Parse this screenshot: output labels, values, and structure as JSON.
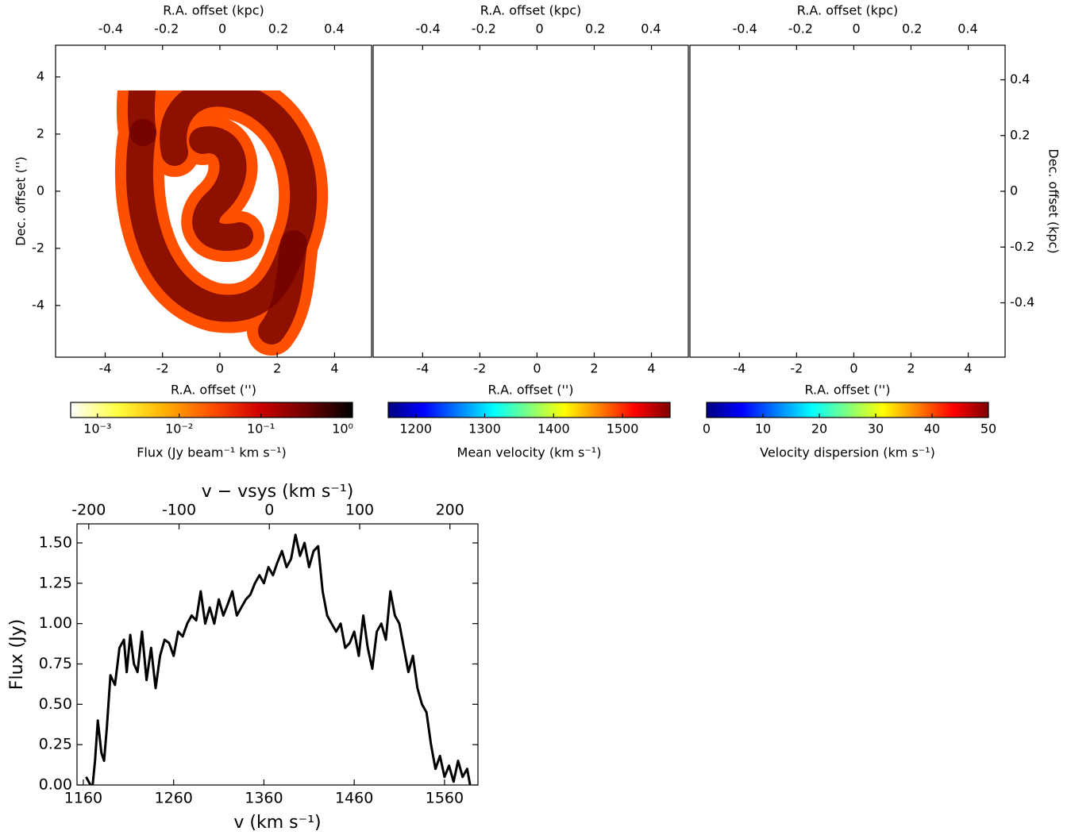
{
  "chart_data": [
    {
      "type": "image",
      "x_label": "R.A. offset ('')",
      "y_label": "Dec. offset ('')",
      "top_label": "R.A. offset (kpc)",
      "xlim": [
        -5.73,
        5.29
      ],
      "xticks": [
        -4,
        -2,
        0,
        2,
        4
      ],
      "ylim": [
        -5.81,
        5.11
      ],
      "yticks": [
        -4,
        -2,
        0,
        2,
        4
      ],
      "top_xlim": [
        -0.597,
        0.534
      ],
      "top_xticks": [
        -0.4,
        -0.2,
        0,
        0.2,
        0.4
      ],
      "colorbar": {
        "label": "Flux (Jy beam⁻¹ km s⁻¹)",
        "log": true,
        "lim": [
          0.00047,
          1.32
        ],
        "ticks": [
          {
            "value": 0.001,
            "label": "10⁻³"
          },
          {
            "value": 0.01,
            "label": "10⁻²"
          },
          {
            "value": 0.1,
            "label": "10⁻¹"
          },
          {
            "value": 1,
            "label": "10⁰"
          }
        ],
        "colors": [
          "#ffffff",
          "#ffff40",
          "#ffb000",
          "#ff5000",
          "#d00000",
          "#700000",
          "#000000"
        ]
      }
    },
    {
      "type": "image",
      "x_label": "R.A. offset ('')",
      "top_label": "R.A. offset (kpc)",
      "xlim": [
        -5.73,
        5.29
      ],
      "xticks": [
        -4,
        -2,
        0,
        2,
        4
      ],
      "ylim": [
        -5.81,
        5.11
      ],
      "top_xlim": [
        -0.597,
        0.534
      ],
      "top_xticks": [
        -0.4,
        -0.2,
        0,
        0.2,
        0.4
      ],
      "colorbar": {
        "label": "Mean velocity (km s⁻¹)",
        "log": false,
        "lim": [
          1160,
          1569
        ],
        "ticks": [
          1200,
          1300,
          1400,
          1500
        ],
        "colors": [
          "#00007f",
          "#0000ff",
          "#007fff",
          "#00ffff",
          "#7fff7f",
          "#ffff00",
          "#ff7f00",
          "#ff0000",
          "#7f0000"
        ]
      }
    },
    {
      "type": "image",
      "x_label": "R.A. offset ('')",
      "top_label": "R.A. offset (kpc)",
      "right_label": "Dec. offset (kpc)",
      "xlim": [
        -5.73,
        5.29
      ],
      "xticks": [
        -4,
        -2,
        0,
        2,
        4
      ],
      "ylim": [
        -5.81,
        5.11
      ],
      "top_xlim": [
        -0.597,
        0.534
      ],
      "top_xticks": [
        -0.4,
        -0.2,
        0,
        0.2,
        0.4
      ],
      "right_ylim": [
        -0.595,
        0.524
      ],
      "right_yticks": [
        -0.4,
        -0.2,
        0,
        0.2,
        0.4
      ],
      "colorbar": {
        "label": "Velocity dispersion (km s⁻¹)",
        "log": false,
        "lim": [
          0,
          50
        ],
        "ticks": [
          0,
          10,
          20,
          30,
          40,
          50
        ],
        "colors": [
          "#00007f",
          "#0000ff",
          "#007fff",
          "#00ffff",
          "#7fff7f",
          "#ffff00",
          "#ff7f00",
          "#ff0000",
          "#7f0000"
        ]
      }
    },
    {
      "type": "line",
      "x_label": "v (km s⁻¹)",
      "y_label": "Flux (Jy)",
      "top_label": "v − vsys (km s⁻¹)",
      "color": "#000000",
      "xlim": [
        1153,
        1597
      ],
      "xticks": [
        1160,
        1260,
        1360,
        1460,
        1560
      ],
      "ylim": [
        0,
        1.618
      ],
      "yticks": [
        {
          "value": 0,
          "label": "0.00"
        },
        {
          "value": 0.25,
          "label": "0.25"
        },
        {
          "value": 0.5,
          "label": "0.50"
        },
        {
          "value": 0.75,
          "label": "0.75"
        },
        {
          "value": 1,
          "label": "1.00"
        },
        {
          "value": 1.25,
          "label": "1.25"
        },
        {
          "value": 1.5,
          "label": "1.50"
        }
      ],
      "top_xlim": [
        -213,
        231
      ],
      "top_xticks": [
        -200,
        -100,
        0,
        100,
        200
      ],
      "x": [
        1163,
        1170,
        1173,
        1176,
        1180,
        1183,
        1186,
        1190,
        1195,
        1200,
        1205,
        1208,
        1212,
        1216,
        1220,
        1225,
        1230,
        1235,
        1240,
        1245,
        1250,
        1255,
        1260,
        1265,
        1270,
        1275,
        1280,
        1285,
        1290,
        1295,
        1300,
        1305,
        1310,
        1315,
        1320,
        1325,
        1330,
        1335,
        1340,
        1345,
        1350,
        1355,
        1360,
        1365,
        1370,
        1375,
        1380,
        1385,
        1390,
        1395,
        1400,
        1405,
        1410,
        1415,
        1420,
        1425,
        1430,
        1435,
        1440,
        1445,
        1450,
        1455,
        1460,
        1465,
        1470,
        1475,
        1480,
        1485,
        1490,
        1495,
        1500,
        1505,
        1510,
        1515,
        1520,
        1525,
        1530,
        1535,
        1540,
        1545,
        1550,
        1555,
        1560,
        1565,
        1570,
        1575,
        1580,
        1585,
        1590
      ],
      "values": [
        0.05,
        -0.02,
        0.15,
        0.4,
        0.2,
        0.15,
        0.35,
        0.68,
        0.62,
        0.85,
        0.9,
        0.7,
        0.93,
        0.75,
        0.7,
        0.95,
        0.65,
        0.85,
        0.6,
        0.8,
        0.9,
        0.88,
        0.8,
        0.95,
        0.92,
        1.0,
        1.05,
        1.02,
        1.2,
        1.0,
        1.1,
        1.0,
        1.15,
        1.05,
        1.12,
        1.2,
        1.05,
        1.1,
        1.15,
        1.18,
        1.25,
        1.3,
        1.25,
        1.35,
        1.3,
        1.38,
        1.45,
        1.35,
        1.4,
        1.55,
        1.42,
        1.5,
        1.35,
        1.45,
        1.48,
        1.2,
        1.05,
        1.0,
        0.95,
        1.0,
        0.85,
        0.88,
        0.95,
        0.8,
        1.05,
        0.85,
        0.72,
        0.95,
        1.0,
        0.9,
        1.2,
        1.05,
        1.0,
        0.85,
        0.7,
        0.8,
        0.6,
        0.5,
        0.45,
        0.25,
        0.1,
        0.18,
        0.05,
        0.12,
        0.02,
        0.15,
        0.05,
        0.1,
        -0.05
      ]
    }
  ]
}
